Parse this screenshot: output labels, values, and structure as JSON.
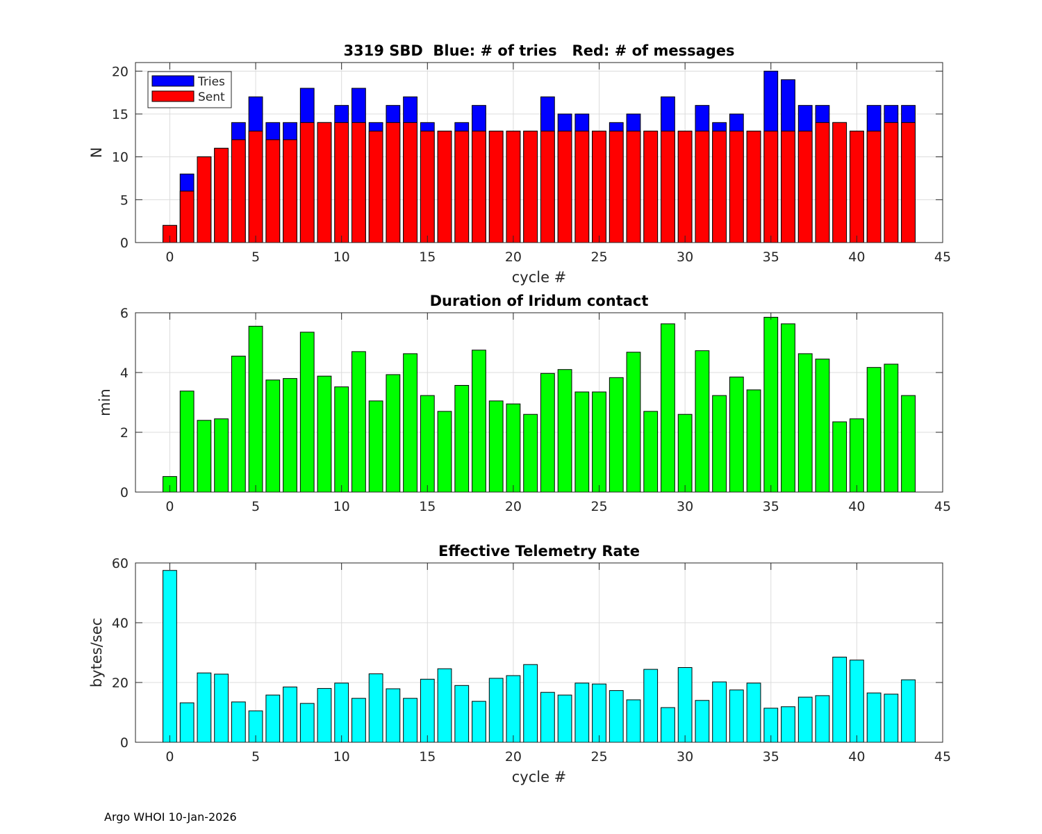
{
  "footer": "Argo WHOI 10-Jan-2026",
  "chart_data": [
    {
      "type": "bar",
      "title": "3319 SBD  Blue: # of tries   Red: # of messages",
      "xlabel": "cycle #",
      "ylabel": "N",
      "xlim": [
        -2,
        45
      ],
      "ylim": [
        0,
        21
      ],
      "xticks": [
        0,
        5,
        10,
        15,
        20,
        25,
        30,
        35,
        40,
        45
      ],
      "yticks": [
        0,
        5,
        10,
        15,
        20
      ],
      "grid": true,
      "legend_position": "top-left",
      "x": [
        0,
        1,
        2,
        3,
        4,
        5,
        6,
        7,
        8,
        9,
        10,
        11,
        12,
        13,
        14,
        15,
        16,
        17,
        18,
        19,
        20,
        21,
        22,
        23,
        24,
        25,
        26,
        27,
        28,
        29,
        30,
        31,
        32,
        33,
        34,
        35,
        36,
        37,
        38,
        39,
        40,
        41,
        42,
        43
      ],
      "series": [
        {
          "name": "Tries",
          "color": "#0000ff",
          "values": [
            2,
            8,
            10,
            11,
            14,
            17,
            14,
            14,
            18,
            14,
            16,
            18,
            14,
            16,
            17,
            14,
            13,
            14,
            16,
            13,
            13,
            13,
            17,
            15,
            15,
            13,
            14,
            15,
            13,
            17,
            13,
            16,
            14,
            15,
            13,
            20,
            19,
            16,
            16,
            14,
            13,
            16,
            16,
            16
          ]
        },
        {
          "name": "Sent",
          "color": "#ff0000",
          "values": [
            2,
            6,
            10,
            11,
            12,
            13,
            12,
            12,
            14,
            14,
            14,
            14,
            13,
            14,
            14,
            13,
            13,
            13,
            13,
            13,
            13,
            13,
            13,
            13,
            13,
            13,
            13,
            13,
            13,
            13,
            13,
            13,
            13,
            13,
            13,
            13,
            13,
            13,
            14,
            14,
            13,
            13,
            14,
            14
          ]
        }
      ]
    },
    {
      "type": "bar",
      "title": "Duration of Iridum contact",
      "xlabel": "",
      "ylabel": "min",
      "xlim": [
        -2,
        45
      ],
      "ylim": [
        0,
        6
      ],
      "xticks": [
        0,
        5,
        10,
        15,
        20,
        25,
        30,
        35,
        40,
        45
      ],
      "yticks": [
        0,
        2,
        4,
        6
      ],
      "grid": true,
      "x": [
        -1,
        0,
        1,
        2,
        3,
        4,
        5,
        6,
        7,
        8,
        9,
        10,
        11,
        12,
        13,
        14,
        15,
        16,
        17,
        18,
        19,
        20,
        21,
        22,
        23,
        24,
        25,
        26,
        27,
        28,
        29,
        30,
        31,
        32,
        33,
        34,
        35,
        36,
        37,
        38,
        39,
        40,
        41,
        42,
        43
      ],
      "series": [
        {
          "name": "Duration",
          "color": "#00ff00",
          "values": [
            0,
            0.52,
            3.38,
            2.4,
            2.45,
            4.55,
            5.55,
            3.75,
            3.8,
            5.35,
            3.88,
            3.52,
            4.7,
            3.05,
            3.93,
            4.63,
            3.23,
            2.7,
            3.57,
            4.75,
            3.05,
            2.95,
            2.6,
            3.97,
            4.1,
            3.35,
            3.35,
            3.83,
            4.68,
            2.7,
            5.63,
            2.6,
            4.73,
            3.23,
            3.85,
            3.42,
            5.85,
            5.63,
            4.63,
            4.45,
            2.35,
            2.45,
            4.17,
            4.28,
            3.23
          ]
        }
      ]
    },
    {
      "type": "bar",
      "title": "Effective Telemetry Rate",
      "xlabel": "cycle #",
      "ylabel": "bytes/sec",
      "xlim": [
        -2,
        45
      ],
      "ylim": [
        0,
        60
      ],
      "xticks": [
        0,
        5,
        10,
        15,
        20,
        25,
        30,
        35,
        40,
        45
      ],
      "yticks": [
        0,
        20,
        40,
        60
      ],
      "grid": true,
      "x": [
        0,
        1,
        2,
        3,
        4,
        5,
        6,
        7,
        8,
        9,
        10,
        11,
        12,
        13,
        14,
        15,
        16,
        17,
        18,
        19,
        20,
        21,
        22,
        23,
        24,
        25,
        26,
        27,
        28,
        29,
        30,
        31,
        32,
        33,
        34,
        35,
        36,
        37,
        38,
        39,
        40,
        41,
        42,
        43
      ],
      "series": [
        {
          "name": "Rate",
          "color": "#00ffff",
          "values": [
            57.5,
            13.2,
            23.2,
            22.8,
            13.5,
            10.5,
            15.8,
            18.5,
            13,
            18,
            19.8,
            14.7,
            22.9,
            17.9,
            14.7,
            21.1,
            24.6,
            19,
            13.7,
            21.4,
            22.3,
            26,
            16.7,
            15.8,
            19.8,
            19.5,
            17.3,
            14.2,
            24.4,
            11.6,
            25,
            14,
            20.2,
            17.5,
            19.8,
            11.4,
            11.9,
            15.1,
            15.6,
            28.5,
            27.5,
            16.5,
            16.1,
            20.9
          ]
        }
      ]
    }
  ]
}
